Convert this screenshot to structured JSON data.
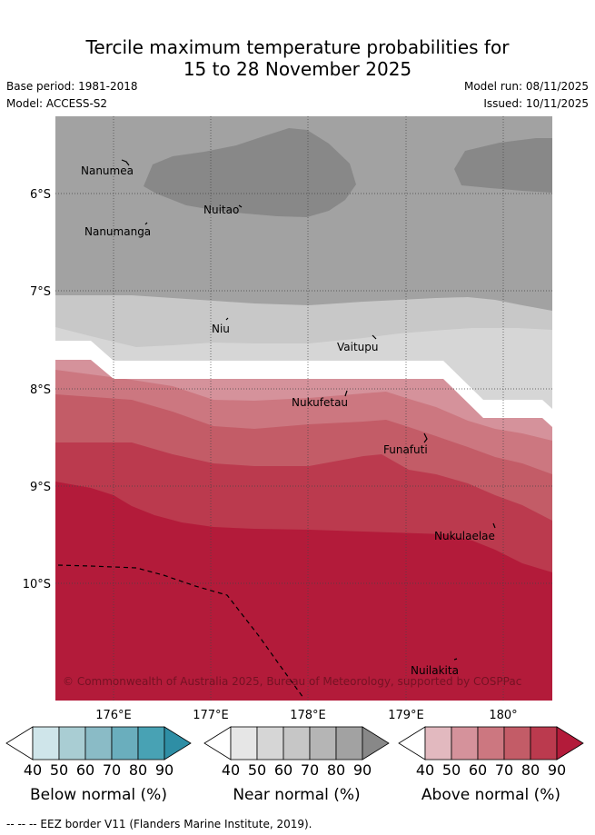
{
  "header": {
    "title_line1": "Tercile maximum temperature probabilities for",
    "title_line2": "15 to 28 November 2025",
    "base_period": "Base period: 1981-2018",
    "model": "Model: ACCESS-S2",
    "model_run": "Model run: 08/11/2025",
    "issued": "Issued: 10/11/2025"
  },
  "map": {
    "latitude_labels": [
      "6°S",
      "7°S",
      "8°S",
      "9°S",
      "10°S"
    ],
    "longitude_labels": [
      "176°E",
      "177°E",
      "178°E",
      "179°E",
      "180°"
    ],
    "places": [
      "Nanumea",
      "Nuitao",
      "Nanumanga",
      "Niu",
      "Vaitupu",
      "Nukufetau",
      "Funafuti",
      "Nukulaelae",
      "Nuilakita"
    ],
    "copyright": "© Commonwealth of Australia 2025, Bureau of Meteorology, supported by COSPPac"
  },
  "legend": {
    "ticks": [
      "40",
      "50",
      "60",
      "70",
      "80",
      "90"
    ],
    "below": {
      "title": "Below normal (%)",
      "colors": [
        "#cfe5ea",
        "#a9cdd3",
        "#8abbc6",
        "#6aaebd",
        "#48a2b4",
        "#2e8ea5"
      ]
    },
    "near": {
      "title": "Near normal (%)",
      "colors": [
        "#e6e6e6",
        "#d6d6d6",
        "#c6c6c6",
        "#b5b5b5",
        "#a2a2a2",
        "#888888"
      ]
    },
    "above": {
      "title": "Above normal (%)",
      "colors": [
        "#e2b9bf",
        "#d5929b",
        "#cc7780",
        "#c35c67",
        "#bb3a4e",
        "#b31b3a"
      ]
    }
  },
  "footnote": "-- -- -- EEZ border V11 (Flanders Marine Institute, 2019)."
}
